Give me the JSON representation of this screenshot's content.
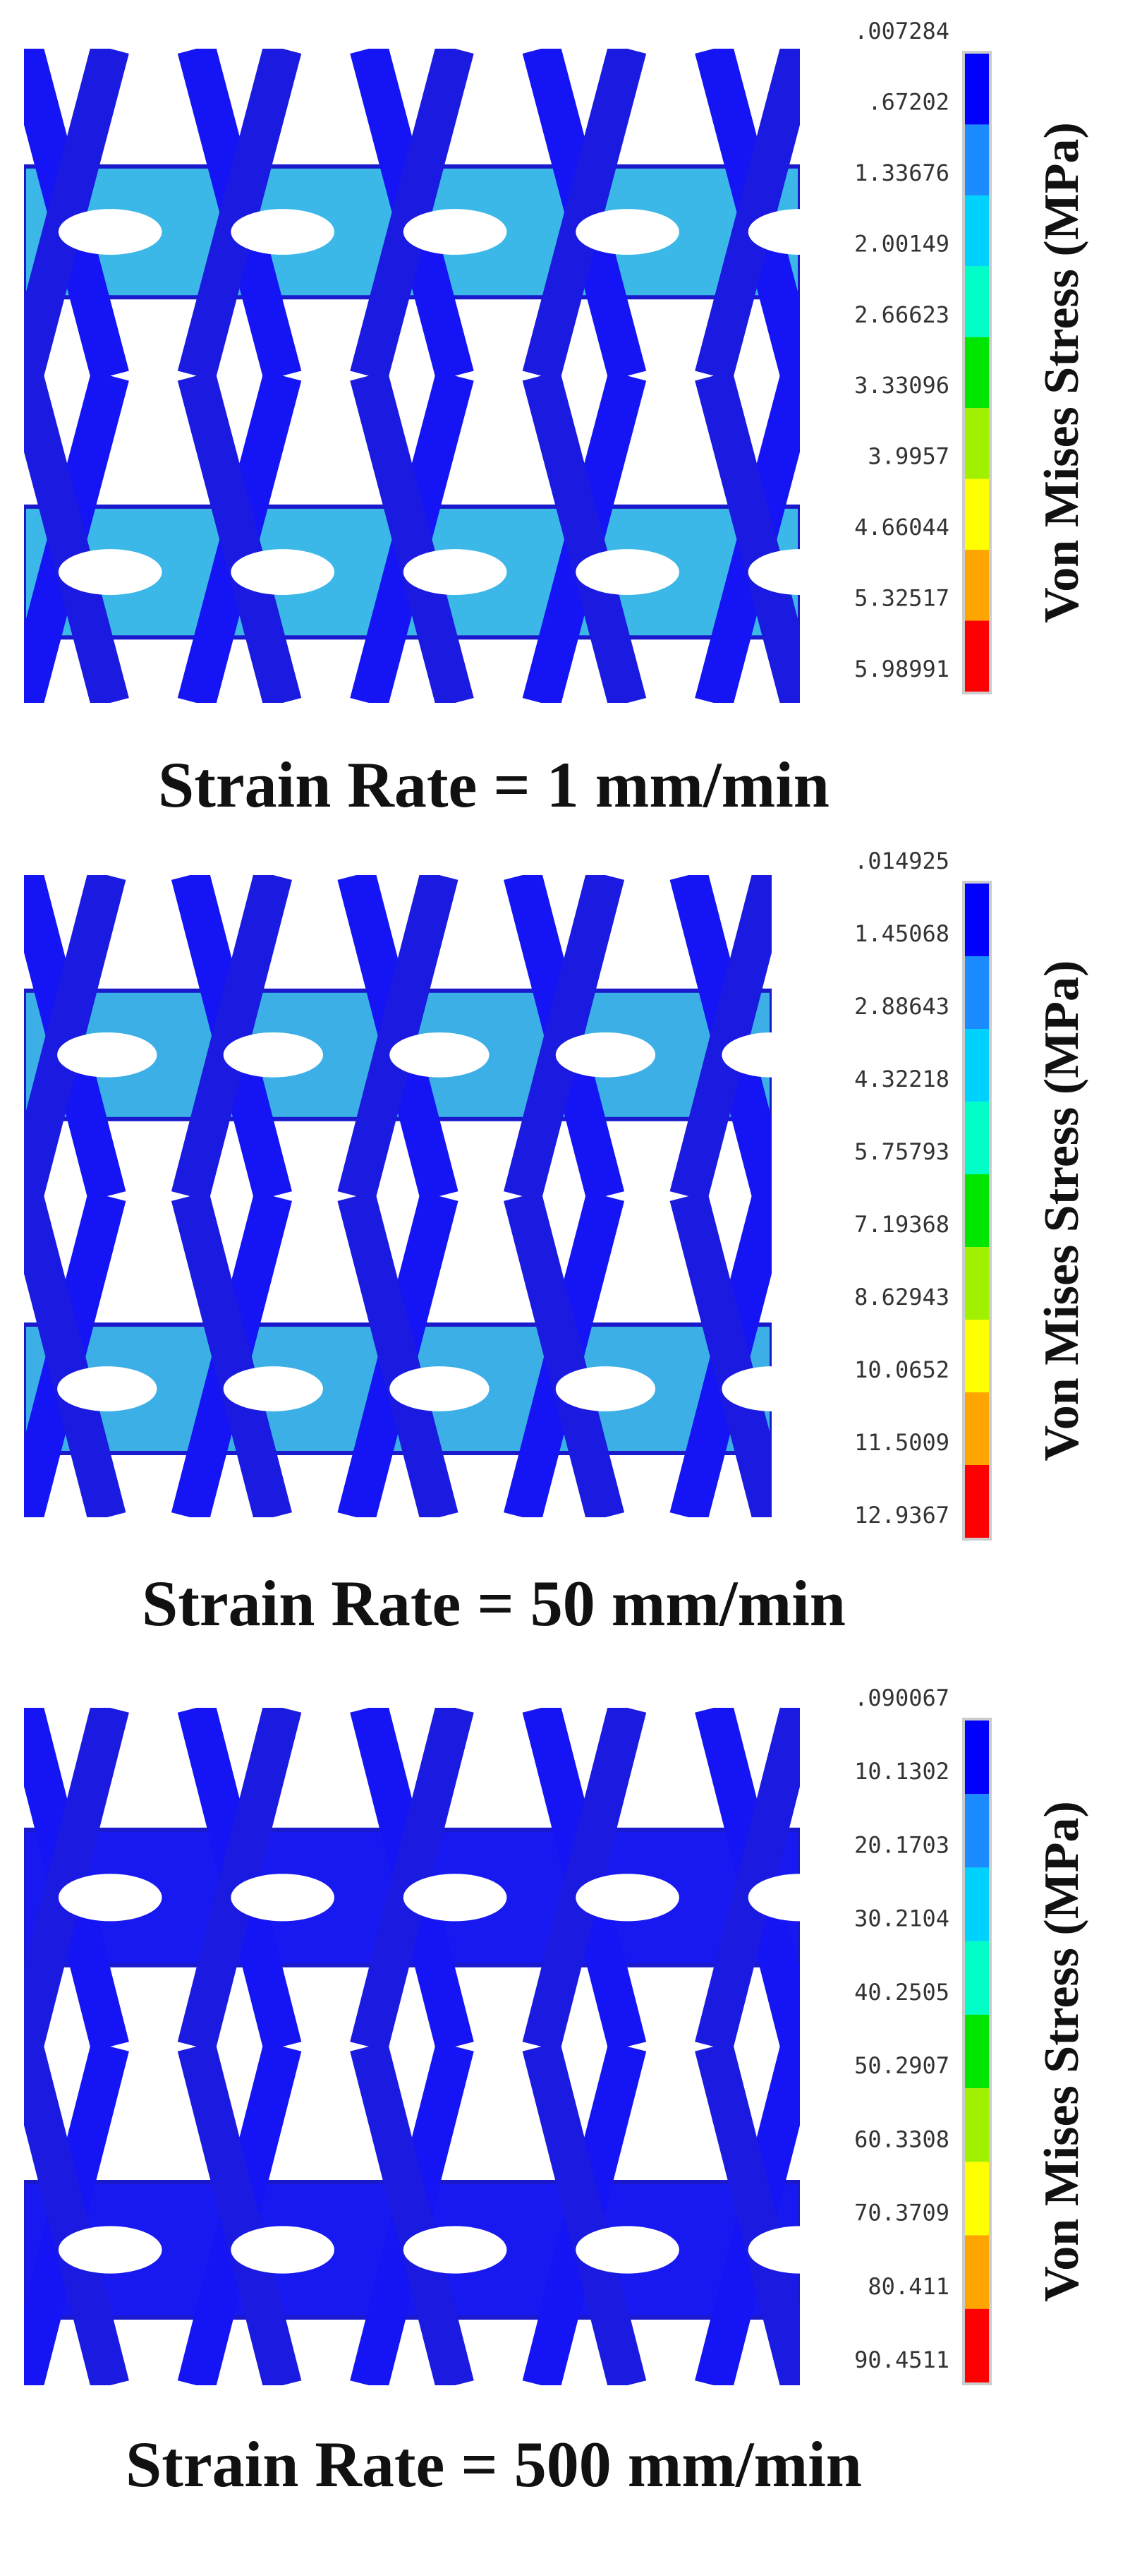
{
  "panels": [
    {
      "legend_labels": [
        ".007284",
        ".67202",
        "1.33676",
        "2.00149",
        "2.66623",
        "3.33096",
        "3.9957",
        "4.66044",
        "5.32517",
        "5.98991"
      ],
      "axis_label": "Von Mises Stress (MPa)",
      "caption": "Strain Rate = 1 mm/min"
    },
    {
      "legend_labels": [
        ".014925",
        "1.45068",
        "2.88643",
        "4.32218",
        "5.75793",
        "7.19368",
        "8.62943",
        "10.0652",
        "11.5009",
        "12.9367"
      ],
      "axis_label": "Von Mises Stress (MPa)",
      "caption": "Strain Rate = 50 mm/min"
    },
    {
      "legend_labels": [
        ".090067",
        "10.1302",
        "20.1703",
        "30.2104",
        "40.2505",
        "50.2907",
        "60.3308",
        "70.3709",
        "80.411",
        "90.4511"
      ],
      "axis_label": "Von Mises Stress (MPa)",
      "caption": "Strain Rate = 500 mm/min"
    }
  ]
}
